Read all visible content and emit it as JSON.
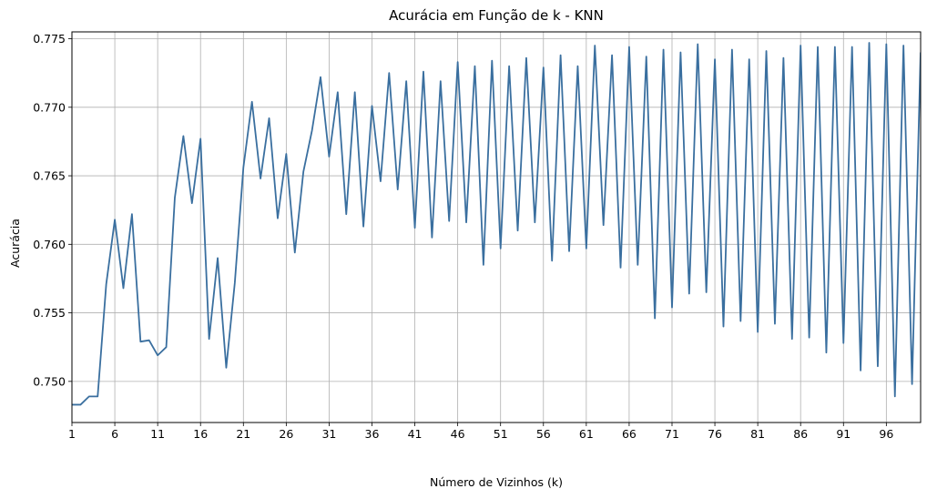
{
  "chart_data": {
    "type": "line",
    "title": "Acurácia em Função de k - KNN",
    "xlabel": "Número de Vizinhos (k)",
    "ylabel": "Acurácia",
    "xlim": [
      1,
      100
    ],
    "ylim": [
      0.747,
      0.7755
    ],
    "xticks": [
      1,
      6,
      11,
      16,
      21,
      26,
      31,
      36,
      41,
      46,
      51,
      56,
      61,
      66,
      71,
      76,
      81,
      86,
      91,
      96
    ],
    "yticks": [
      0.75,
      0.755,
      0.76,
      0.765,
      0.77,
      0.775
    ],
    "ytick_labels": [
      "0.750",
      "0.755",
      "0.760",
      "0.765",
      "0.770",
      "0.775"
    ],
    "grid": true,
    "line_color": "#3a6f9f",
    "series": [
      {
        "x": [
          1,
          2,
          3,
          4,
          5,
          6,
          7,
          8,
          9,
          10,
          11,
          12,
          13,
          14,
          15,
          16,
          17,
          18,
          19,
          20,
          21,
          22,
          23,
          24,
          25,
          26,
          27,
          28,
          29,
          30,
          31,
          32,
          33,
          34,
          35,
          36,
          37,
          38,
          39,
          40,
          41,
          42,
          43,
          44,
          45,
          46,
          47,
          48,
          49,
          50,
          51,
          52,
          53,
          54,
          55,
          56,
          57,
          58,
          59,
          60,
          61,
          62,
          63,
          64,
          65,
          66,
          67,
          68,
          69,
          70,
          71,
          72,
          73,
          74,
          75,
          76,
          77,
          78,
          79,
          80,
          81,
          82,
          83,
          84,
          85,
          86,
          87,
          88,
          89,
          90,
          91,
          92,
          93,
          94,
          95,
          96,
          97,
          98,
          99,
          100
        ],
        "values": [
          0.7483,
          0.7483,
          0.7489,
          0.7489,
          0.7571,
          0.7618,
          0.7568,
          0.7622,
          0.7529,
          0.753,
          0.7519,
          0.7525,
          0.7634,
          0.7679,
          0.763,
          0.7677,
          0.7531,
          0.759,
          0.751,
          0.7572,
          0.7656,
          0.7704,
          0.7648,
          0.7692,
          0.7619,
          0.7666,
          0.7594,
          0.7653,
          0.7683,
          0.7722,
          0.7664,
          0.7711,
          0.7622,
          0.7711,
          0.7613,
          0.7701,
          0.7646,
          0.7725,
          0.764,
          0.7719,
          0.7612,
          0.7726,
          0.7605,
          0.7719,
          0.7617,
          0.7733,
          0.7616,
          0.773,
          0.7585,
          0.7734,
          0.7597,
          0.773,
          0.761,
          0.7736,
          0.7616,
          0.7729,
          0.7588,
          0.7738,
          0.7595,
          0.773,
          0.7597,
          0.7745,
          0.7614,
          0.7738,
          0.7583,
          0.7744,
          0.7585,
          0.7737,
          0.7546,
          0.7742,
          0.7554,
          0.774,
          0.7564,
          0.7746,
          0.7565,
          0.7735,
          0.754,
          0.7742,
          0.7544,
          0.7735,
          0.7536,
          0.7741,
          0.7542,
          0.7736,
          0.7531,
          0.7745,
          0.7532,
          0.7744,
          0.7521,
          0.7744,
          0.7528,
          0.7744,
          0.7508,
          0.7747,
          0.7511,
          0.7746,
          0.7489,
          0.7745,
          0.7498,
          0.774
        ]
      }
    ]
  }
}
